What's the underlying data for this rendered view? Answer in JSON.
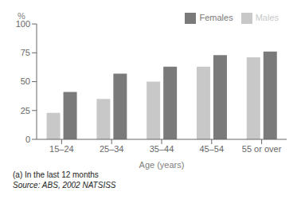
{
  "chart_data": {
    "type": "bar",
    "categories": [
      "15–24",
      "25–34",
      "35–44",
      "45–54",
      "55 or over"
    ],
    "series": [
      {
        "name": "Males",
        "color": "#c8c8c8",
        "values": [
          23,
          35,
          50,
          63,
          71
        ]
      },
      {
        "name": "Females",
        "color": "#7a7a7a",
        "values": [
          41,
          57,
          63,
          73,
          76
        ]
      }
    ],
    "xlabel": "Age (years)",
    "ylabel": "%",
    "ylim": [
      0,
      100
    ],
    "yticks": [
      0,
      25,
      50,
      75,
      100
    ],
    "legend": "upper right",
    "grid": false,
    "annotations": [
      "(a) In the last 12 months",
      "Source: ABS, 2002 NATSISS"
    ]
  }
}
